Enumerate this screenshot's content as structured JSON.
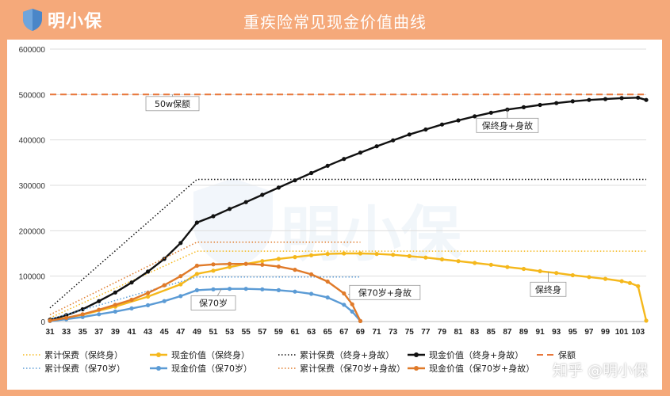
{
  "header": {
    "logo_text": "明小保",
    "title": "重疾险常见现金价值曲线"
  },
  "watermark_text": "明小保",
  "footer_brand": "知乎 @明小保",
  "colors": {
    "background": "#f5a97a",
    "black": "#111111",
    "yellow": "#f5b81c",
    "orange": "#e8773a",
    "blue": "#5b9bd5",
    "dark_orange": "#e07a29",
    "grid": "#dddddd"
  },
  "chart_data": {
    "type": "line",
    "title": "",
    "xlabel": "",
    "ylabel": "",
    "x_tick_labels": [
      "31",
      "33",
      "35",
      "37",
      "39",
      "41",
      "43",
      "45",
      "47",
      "49",
      "51",
      "53",
      "55",
      "57",
      "59",
      "61",
      "63",
      "65",
      "67",
      "69",
      "71",
      "73",
      "75",
      "77",
      "79",
      "81",
      "83",
      "85",
      "87",
      "89",
      "91",
      "93",
      "95",
      "97",
      "99",
      "101",
      "103"
    ],
    "y_ticks": [
      0,
      100000,
      200000,
      300000,
      400000,
      500000,
      600000
    ],
    "xlim": [
      31,
      104
    ],
    "ylim": [
      0,
      600000
    ],
    "grid": "horizontal",
    "legend_position": "bottom",
    "series": [
      {
        "name": "累计保费（保终身）",
        "key": "cum_life",
        "style": "dotted",
        "color": "#f5b81c",
        "points": [
          [
            31,
            8000
          ],
          [
            49,
            155000
          ],
          [
            104,
            155000
          ]
        ]
      },
      {
        "name": "现金价值（保终身）",
        "key": "cv_life",
        "style": "marker",
        "color": "#f5b81c",
        "points": [
          [
            31,
            2000
          ],
          [
            35,
            15000
          ],
          [
            39,
            33000
          ],
          [
            43,
            55000
          ],
          [
            47,
            82000
          ],
          [
            49,
            105000
          ],
          [
            51,
            112000
          ],
          [
            53,
            120000
          ],
          [
            55,
            127000
          ],
          [
            57,
            133000
          ],
          [
            59,
            138000
          ],
          [
            61,
            142000
          ],
          [
            63,
            146000
          ],
          [
            65,
            149000
          ],
          [
            67,
            150000
          ],
          [
            69,
            150000
          ],
          [
            71,
            149000
          ],
          [
            73,
            147000
          ],
          [
            75,
            144000
          ],
          [
            77,
            141000
          ],
          [
            79,
            137000
          ],
          [
            81,
            133000
          ],
          [
            83,
            129000
          ],
          [
            85,
            125000
          ],
          [
            87,
            120000
          ],
          [
            89,
            116000
          ],
          [
            91,
            111000
          ],
          [
            93,
            107000
          ],
          [
            95,
            102000
          ],
          [
            97,
            98000
          ],
          [
            99,
            94000
          ],
          [
            101,
            89000
          ],
          [
            102,
            85000
          ],
          [
            103,
            78000
          ],
          [
            104,
            2000
          ]
        ]
      },
      {
        "name": "累计保费（终身+身故）",
        "key": "cum_life_death",
        "style": "dotted",
        "color": "#111111",
        "points": [
          [
            31,
            30000
          ],
          [
            49,
            313000
          ],
          [
            104,
            313000
          ]
        ]
      },
      {
        "name": "现金价值（终身+身故）",
        "key": "cv_life_death",
        "style": "marker",
        "color": "#111111",
        "points": [
          [
            31,
            4000
          ],
          [
            33,
            14000
          ],
          [
            35,
            27000
          ],
          [
            37,
            45000
          ],
          [
            39,
            64000
          ],
          [
            41,
            86000
          ],
          [
            43,
            110000
          ],
          [
            45,
            138000
          ],
          [
            47,
            173000
          ],
          [
            49,
            218000
          ],
          [
            51,
            232000
          ],
          [
            53,
            248000
          ],
          [
            55,
            263000
          ],
          [
            57,
            279000
          ],
          [
            59,
            295000
          ],
          [
            61,
            311000
          ],
          [
            63,
            327000
          ],
          [
            65,
            343000
          ],
          [
            67,
            358000
          ],
          [
            69,
            372000
          ],
          [
            71,
            386000
          ],
          [
            73,
            399000
          ],
          [
            75,
            412000
          ],
          [
            77,
            423000
          ],
          [
            79,
            434000
          ],
          [
            81,
            443000
          ],
          [
            83,
            452000
          ],
          [
            85,
            460000
          ],
          [
            87,
            467000
          ],
          [
            89,
            472000
          ],
          [
            91,
            477000
          ],
          [
            93,
            481000
          ],
          [
            95,
            485000
          ],
          [
            97,
            488000
          ],
          [
            99,
            490000
          ],
          [
            101,
            492000
          ],
          [
            103,
            493000
          ],
          [
            104,
            488000
          ]
        ]
      },
      {
        "name": "保额",
        "key": "sum_assured",
        "style": "dashed",
        "color": "#e8773a",
        "points": [
          [
            31,
            500000
          ],
          [
            104,
            500000
          ]
        ]
      },
      {
        "name": "累计保费（保70岁）",
        "key": "cum_70",
        "style": "dotted",
        "color": "#5b9bd5",
        "points": [
          [
            31,
            5000
          ],
          [
            49,
            98000
          ],
          [
            69,
            98000
          ]
        ]
      },
      {
        "name": "现金价值（保70岁）",
        "key": "cv_70",
        "style": "marker",
        "color": "#5b9bd5",
        "points": [
          [
            31,
            1000
          ],
          [
            33,
            5000
          ],
          [
            35,
            10000
          ],
          [
            37,
            16000
          ],
          [
            39,
            22000
          ],
          [
            41,
            29000
          ],
          [
            43,
            36000
          ],
          [
            45,
            45000
          ],
          [
            47,
            56000
          ],
          [
            49,
            69000
          ],
          [
            51,
            71000
          ],
          [
            53,
            72000
          ],
          [
            55,
            72000
          ],
          [
            57,
            71000
          ],
          [
            59,
            69000
          ],
          [
            61,
            66000
          ],
          [
            63,
            61000
          ],
          [
            65,
            53000
          ],
          [
            67,
            37000
          ],
          [
            68,
            22000
          ],
          [
            69,
            1000
          ]
        ]
      },
      {
        "name": "累计保费（保70岁+身故）",
        "key": "cum_70_death",
        "style": "dotted",
        "color": "#e07a29",
        "points": [
          [
            31,
            15000
          ],
          [
            49,
            175000
          ],
          [
            69,
            175000
          ]
        ]
      },
      {
        "name": "现金价值（保70岁+身故）",
        "key": "cv_70_death",
        "style": "marker",
        "color": "#e07a29",
        "points": [
          [
            31,
            2000
          ],
          [
            33,
            8000
          ],
          [
            35,
            16000
          ],
          [
            37,
            26000
          ],
          [
            39,
            37000
          ],
          [
            41,
            48000
          ],
          [
            43,
            63000
          ],
          [
            45,
            80000
          ],
          [
            47,
            100000
          ],
          [
            49,
            123000
          ],
          [
            51,
            126000
          ],
          [
            53,
            127000
          ],
          [
            55,
            127000
          ],
          [
            57,
            125000
          ],
          [
            59,
            121000
          ],
          [
            61,
            114000
          ],
          [
            63,
            104000
          ],
          [
            65,
            88000
          ],
          [
            67,
            62000
          ],
          [
            68,
            38000
          ],
          [
            69,
            1000
          ]
        ]
      }
    ],
    "annotations": [
      {
        "text": "50w保额",
        "x": 46,
        "y": 480000,
        "anchor_x": 46,
        "anchor_y": 500000
      },
      {
        "text": "保终身+身故",
        "x": 87,
        "y": 432000,
        "anchor_x": 87,
        "anchor_y": 468000
      },
      {
        "text": "保终身",
        "x": 92,
        "y": 71000,
        "anchor_x": 92,
        "anchor_y": 109000
      },
      {
        "text": "保70岁+身故",
        "x": 72,
        "y": 64000,
        "anchor_x": 67.5,
        "anchor_y": 60000
      },
      {
        "text": "保70岁",
        "x": 51,
        "y": 41000,
        "anchor_x": 52,
        "anchor_y": 72000
      }
    ]
  }
}
